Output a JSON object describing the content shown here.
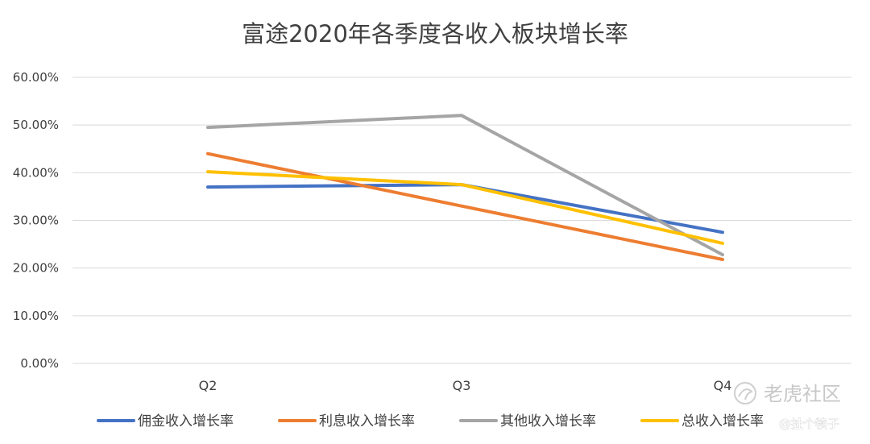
{
  "chart_data": {
    "type": "line",
    "title": "富途2020年各季度各收入板块增长率",
    "categories": [
      "Q2",
      "Q3",
      "Q4"
    ],
    "ylim": [
      0,
      0.6
    ],
    "yticks": [
      0,
      0.1,
      0.2,
      0.3,
      0.4,
      0.5,
      0.6
    ],
    "ytick_labels": [
      "0.00%",
      "10.00%",
      "20.00%",
      "30.00%",
      "40.00%",
      "50.00%",
      "60.00%"
    ],
    "grid": true,
    "legend_position": "bottom",
    "series": [
      {
        "name": "佣金收入增长率",
        "color": "#4472c4",
        "values": [
          0.37,
          0.375,
          0.275
        ]
      },
      {
        "name": "利息收入增长率",
        "color": "#ed7d31",
        "values": [
          0.44,
          0.33,
          0.218
        ]
      },
      {
        "name": "其他收入增长率",
        "color": "#a5a5a5",
        "values": [
          0.495,
          0.52,
          0.228
        ]
      },
      {
        "name": "总收入增长率",
        "color": "#ffc000",
        "values": [
          0.402,
          0.375,
          0.252
        ]
      }
    ]
  },
  "watermark": {
    "brand": "老虎社区",
    "author": "@扯个犊子"
  }
}
